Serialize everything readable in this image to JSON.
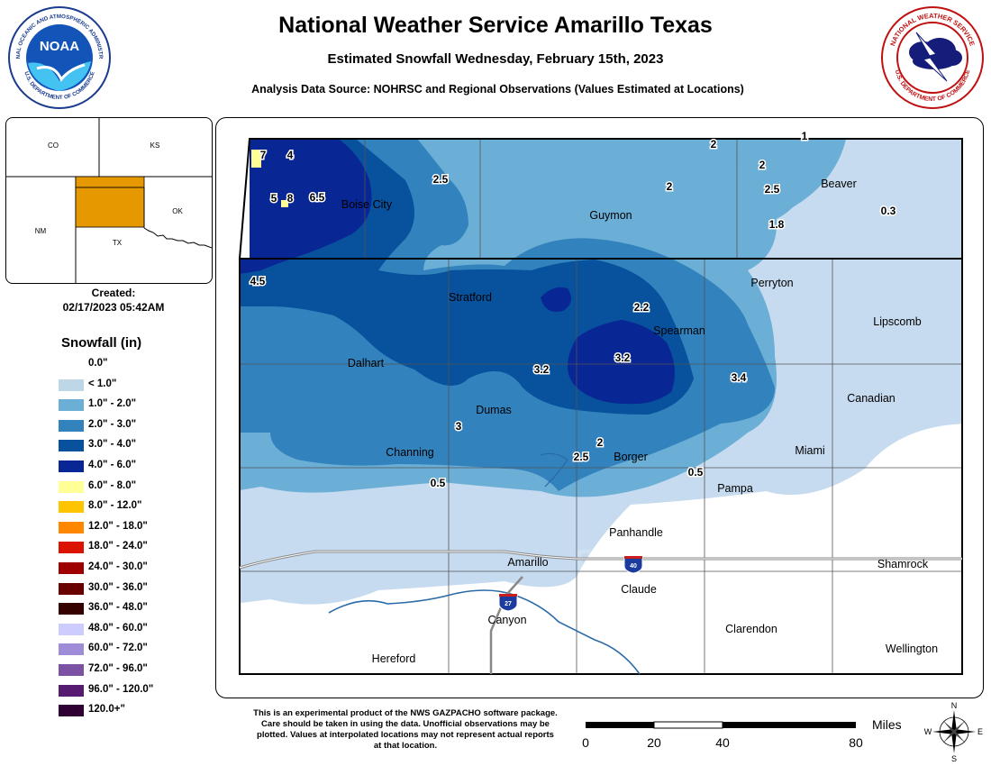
{
  "header": {
    "title": "National Weather Service Amarillo Texas",
    "subtitle": "Estimated Snowfall Wednesday, February 15th, 2023",
    "source": "Analysis Data Source: NOHRSC and Regional Observations (Values Estimated at Locations)"
  },
  "noaa_logo": {
    "center_text": "NOAA",
    "ring_text": "NATIONAL OCEANIC AND ATMOSPHERIC ADMINISTRATION",
    "bottom_text": "U.S. DEPARTMENT OF COMMERCE"
  },
  "nws_logo": {
    "ring_text": "NATIONAL WEATHER SERVICE",
    "bottom_text": "U.S. DEPARTMENT OF COMMERCE"
  },
  "inset": {
    "states": [
      "CO",
      "KS",
      "NM",
      "OK",
      "TX"
    ]
  },
  "created": {
    "label": "Created:",
    "value": "02/17/2023 05:42AM"
  },
  "legend": {
    "title": "Snowfall (in)",
    "items": [
      {
        "label": "0.0\"",
        "color": "#ffffff"
      },
      {
        "label": "< 1.0\"",
        "color": "#bdd7e7"
      },
      {
        "label": "1.0\" - 2.0\"",
        "color": "#6baed6"
      },
      {
        "label": "2.0\" - 3.0\"",
        "color": "#3182bd"
      },
      {
        "label": "3.0\" - 4.0\"",
        "color": "#08519c"
      },
      {
        "label": "4.0\" - 6.0\"",
        "color": "#082694"
      },
      {
        "label": "6.0\" - 8.0\"",
        "color": "#ffff96"
      },
      {
        "label": "8.0\" - 12.0\"",
        "color": "#ffc400"
      },
      {
        "label": "12.0\" - 18.0\"",
        "color": "#ff8700"
      },
      {
        "label": "18.0\" - 24.0\"",
        "color": "#db1400"
      },
      {
        "label": "24.0\" - 30.0\"",
        "color": "#9e0000"
      },
      {
        "label": "30.0\" - 36.0\"",
        "color": "#690000"
      },
      {
        "label": "36.0\" - 48.0\"",
        "color": "#360000"
      },
      {
        "label": "48.0\" - 60.0\"",
        "color": "#ccccff"
      },
      {
        "label": "60.0\" - 72.0\"",
        "color": "#9f8cd8"
      },
      {
        "label": "72.0\" - 96.0\"",
        "color": "#7c52a5"
      },
      {
        "label": "96.0\" - 120.0\"",
        "color": "#561c72"
      },
      {
        "label": "120.0+\"",
        "color": "#2e0033"
      }
    ]
  },
  "map": {
    "towns": [
      "Boise City",
      "Guymon",
      "Beaver",
      "Perryton",
      "Stratford",
      "Spearman",
      "Lipscomb",
      "Dalhart",
      "Canadian",
      "Dumas",
      "Channing",
      "Borger",
      "Miami",
      "Pampa",
      "Panhandle",
      "Amarillo",
      "Shamrock",
      "Claude",
      "Canyon",
      "Clarendon",
      "Hereford",
      "Wellington"
    ],
    "values": [
      "7",
      "4",
      "5",
      "8",
      "6.5",
      "2.5",
      "2",
      "1",
      "2",
      "2.5",
      "1.8",
      "2",
      "0.3",
      "4.5",
      "2.2",
      "3.2",
      "3.2",
      "3.4",
      "3",
      "2",
      "2.5",
      "0.5",
      "0.5"
    ],
    "shields": [
      "40",
      "27"
    ],
    "watermark": "DEPARTMENT OF COMMERCE"
  },
  "disclaimer": "This is an experimental product of the NWS GAZPACHO software package. Care should be taken in using the data. Unofficial observations may be plotted. Values at interpolated locations may not represent actual reports at that location.",
  "scale": {
    "unit": "Miles",
    "ticks": [
      "0",
      "20",
      "40",
      "80"
    ]
  },
  "compass": {
    "n": "N",
    "s": "S",
    "e": "E",
    "w": "W"
  }
}
